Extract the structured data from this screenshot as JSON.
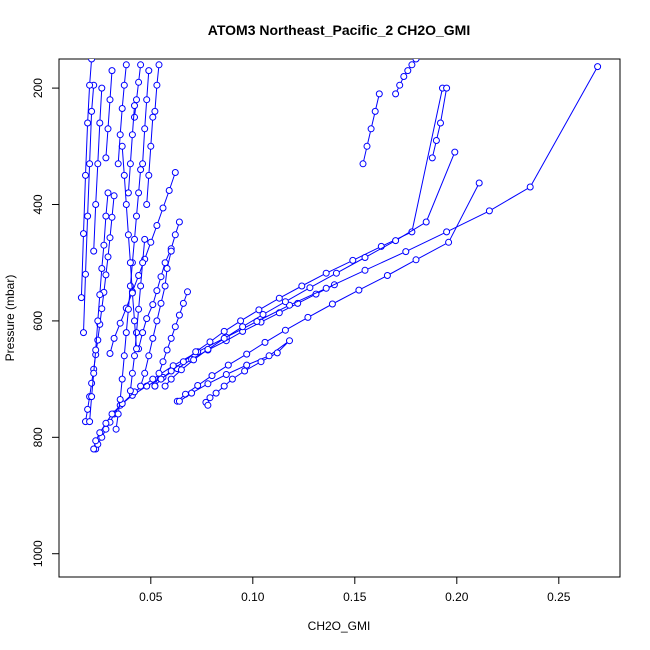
{
  "chart_data": {
    "type": "line",
    "title": "ATOM3 Northeast_Pacific_2 CH2O_GMI",
    "xlabel": "CH2O_GMI",
    "ylabel": "Pressure (mbar)",
    "xlim": [
      0.005,
      0.28
    ],
    "ylim": [
      1040,
      150
    ],
    "y_inverted": true,
    "x_ticks": [
      0.05,
      0.1,
      0.15,
      0.2,
      0.25
    ],
    "x_tick_labels": [
      "0.05",
      "0.10",
      "0.15",
      "0.20",
      "0.25"
    ],
    "y_ticks": [
      200,
      400,
      600,
      800,
      1000
    ],
    "y_tick_labels": [
      "200",
      "400",
      "600",
      "800",
      "1000"
    ],
    "series_color": "#0000ff",
    "marker": "open-circle",
    "grid": false,
    "legend": "none",
    "series": [
      {
        "x": [
          0.023,
          0.024,
          0.026,
          0.028,
          0.03,
          0.032,
          0.035,
          0.041,
          0.048,
          0.056,
          0.063,
          0.07,
          0.078,
          0.087,
          0.095,
          0.104,
          0.113,
          0.122,
          0.131,
          0.14
        ],
        "y": [
          820,
          812,
          800,
          786,
          774,
          760,
          745,
          728,
          712,
          697,
          682,
          666,
          650,
          634,
          618,
          602,
          586,
          570,
          554,
          538
        ]
      },
      {
        "x": [
          0.022,
          0.023,
          0.025,
          0.028,
          0.031,
          0.036,
          0.042,
          0.051,
          0.061,
          0.073,
          0.087,
          0.102,
          0.118,
          0.136,
          0.155,
          0.175,
          0.195,
          0.216,
          0.236,
          0.269
        ],
        "y": [
          820,
          806,
          792,
          776,
          760,
          742,
          722,
          700,
          677,
          653,
          628,
          601,
          573,
          544,
          513,
          481,
          447,
          411,
          370,
          163
        ]
      },
      {
        "x": [
          0.018,
          0.019,
          0.02,
          0.021,
          0.022,
          0.023,
          0.024,
          0.025,
          0.026,
          0.027,
          0.028,
          0.029,
          0.03,
          0.031,
          0.032
        ],
        "y": [
          773,
          752,
          730,
          707,
          683,
          658,
          633,
          606,
          579,
          551,
          521,
          490,
          457,
          422,
          385
        ]
      },
      {
        "x": [
          0.03,
          0.032,
          0.035,
          0.038,
          0.041,
          0.044,
          0.047,
          0.05,
          0.053,
          0.056,
          0.059,
          0.062
        ],
        "y": [
          656,
          630,
          604,
          578,
          550,
          522,
          494,
          465,
          436,
          406,
          376,
          345
        ]
      },
      {
        "x": [
          0.044,
          0.046,
          0.048,
          0.051,
          0.053,
          0.055,
          0.057,
          0.06,
          0.062,
          0.064
        ],
        "y": [
          648,
          620,
          596,
          572,
          548,
          524,
          500,
          476,
          452,
          430
        ]
      },
      {
        "x": [
          0.052,
          0.055,
          0.06,
          0.066,
          0.072,
          0.079,
          0.086,
          0.094,
          0.103,
          0.113,
          0.124,
          0.136,
          0.149,
          0.163,
          0.178,
          0.193
        ],
        "y": [
          712,
          700,
          686,
          670,
          653,
          636,
          618,
          600,
          581,
          561,
          540,
          518,
          496,
          472,
          447,
          200
        ]
      },
      {
        "x": [
          0.057,
          0.06,
          0.065,
          0.071,
          0.078,
          0.086,
          0.095,
          0.105,
          0.116,
          0.128,
          0.141,
          0.155,
          0.17,
          0.185,
          0.199
        ],
        "y": [
          712,
          700,
          684,
          667,
          649,
          630,
          610,
          589,
          567,
          543,
          518,
          491,
          462,
          430,
          310
        ]
      },
      {
        "x": [
          0.063,
          0.067,
          0.073,
          0.08,
          0.088,
          0.097,
          0.106,
          0.116,
          0.127,
          0.139,
          0.152,
          0.166,
          0.18,
          0.196,
          0.211
        ],
        "y": [
          738,
          726,
          711,
          694,
          676,
          657,
          637,
          616,
          594,
          571,
          547,
          522,
          495,
          465,
          363
        ]
      },
      {
        "x": [
          0.064,
          0.07,
          0.078,
          0.087,
          0.097,
          0.108,
          0.118,
          0.112,
          0.104,
          0.096,
          0.09,
          0.086,
          0.082,
          0.079,
          0.077,
          0.078
        ],
        "y": [
          738,
          724,
          708,
          692,
          676,
          660,
          634,
          655,
          670,
          686,
          700,
          712,
          724,
          732,
          740,
          745
        ]
      },
      {
        "x": [
          0.033,
          0.034,
          0.035,
          0.036,
          0.037,
          0.038,
          0.039,
          0.04,
          0.041,
          0.042,
          0.043,
          0.044,
          0.045
        ],
        "y": [
          786,
          760,
          735,
          700,
          660,
          620,
          580,
          540,
          500,
          460,
          420,
          380,
          340
        ]
      },
      {
        "x": [
          0.04,
          0.041,
          0.042,
          0.043,
          0.044,
          0.045,
          0.046,
          0.047
        ],
        "y": [
          720,
          690,
          660,
          620,
          580,
          540,
          500,
          460
        ]
      },
      {
        "x": [
          0.052,
          0.054,
          0.056,
          0.058,
          0.06,
          0.062,
          0.064,
          0.066,
          0.068
        ],
        "y": [
          712,
          690,
          670,
          650,
          630,
          610,
          590,
          570,
          550
        ]
      },
      {
        "x": [
          0.045,
          0.047,
          0.049,
          0.051,
          0.053,
          0.055,
          0.057,
          0.058,
          0.06
        ],
        "y": [
          712,
          690,
          660,
          630,
          600,
          570,
          540,
          510,
          480
        ]
      },
      {
        "x": [
          0.043,
          0.042,
          0.041,
          0.04,
          0.039,
          0.038,
          0.037,
          0.036
        ],
        "y": [
          648,
          600,
          552,
          500,
          452,
          400,
          350,
          300
        ]
      },
      {
        "x": [
          0.02,
          0.021,
          0.022,
          0.023,
          0.024,
          0.025,
          0.026,
          0.027,
          0.028,
          0.029
        ],
        "y": [
          773,
          730,
          690,
          650,
          600,
          555,
          510,
          470,
          420,
          380
        ]
      },
      {
        "x": [
          0.017,
          0.018,
          0.019,
          0.02,
          0.021,
          0.022
        ],
        "y": [
          620,
          520,
          420,
          330,
          240,
          195
        ]
      },
      {
        "x": [
          0.016,
          0.017,
          0.018,
          0.019,
          0.02,
          0.021
        ],
        "y": [
          560,
          450,
          350,
          260,
          195,
          150
        ]
      },
      {
        "x": [
          0.022,
          0.023,
          0.024,
          0.025,
          0.026
        ],
        "y": [
          480,
          400,
          330,
          260,
          200
        ]
      },
      {
        "x": [
          0.028,
          0.029,
          0.03,
          0.031
        ],
        "y": [
          320,
          270,
          220,
          170
        ]
      },
      {
        "x": [
          0.034,
          0.035,
          0.036,
          0.037,
          0.038
        ],
        "y": [
          330,
          280,
          235,
          195,
          160
        ]
      },
      {
        "x": [
          0.042,
          0.043,
          0.044,
          0.045
        ],
        "y": [
          250,
          220,
          190,
          160
        ]
      },
      {
        "x": [
          0.046,
          0.047,
          0.048,
          0.049
        ],
        "y": [
          330,
          270,
          220,
          170
        ]
      },
      {
        "x": [
          0.052,
          0.053,
          0.054
        ],
        "y": [
          240,
          195,
          160
        ]
      },
      {
        "x": [
          0.039,
          0.04,
          0.041,
          0.042
        ],
        "y": [
          380,
          330,
          280,
          230
        ]
      },
      {
        "x": [
          0.048,
          0.049,
          0.05,
          0.051
        ],
        "y": [
          400,
          350,
          300,
          250
        ]
      },
      {
        "x": [
          0.17,
          0.172,
          0.174,
          0.176,
          0.178,
          0.18
        ],
        "y": [
          210,
          195,
          180,
          170,
          160,
          150
        ]
      },
      {
        "x": [
          0.154,
          0.156,
          0.158,
          0.16,
          0.162
        ],
        "y": [
          330,
          300,
          270,
          240,
          210
        ]
      },
      {
        "x": [
          0.188,
          0.19,
          0.192,
          0.195
        ],
        "y": [
          320,
          290,
          260,
          200
        ]
      }
    ]
  }
}
